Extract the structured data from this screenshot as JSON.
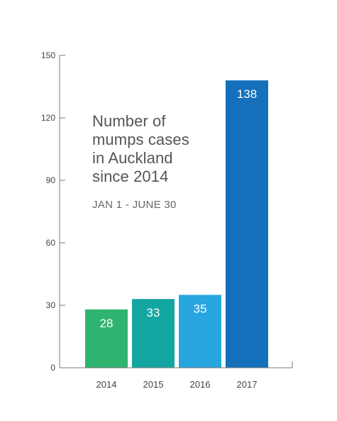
{
  "chart_data": {
    "type": "bar",
    "title": "Number of\nmumps cases\nin Auckland\nsince 2014",
    "subtitle": "JAN 1 - JUNE 30",
    "xlabel": "",
    "ylabel": "",
    "categories": [
      "2014",
      "2015",
      "2016",
      "2017"
    ],
    "values": [
      28,
      33,
      35,
      138
    ],
    "data_labels": [
      "28",
      "33",
      "35",
      "138"
    ],
    "ylim": [
      0,
      150
    ],
    "yticks": [
      0,
      30,
      60,
      90,
      120,
      150
    ],
    "ytick_labels": [
      "0",
      "30",
      "60",
      "90",
      "120",
      "150"
    ],
    "bar_colors": [
      "#2eb46e",
      "#13a6a0",
      "#27a6e0",
      "#1470bb"
    ],
    "axis_color": "#777777",
    "tick_label_color": "#444444",
    "data_label_color": "#ffffff",
    "grid": false,
    "legend": "none"
  }
}
